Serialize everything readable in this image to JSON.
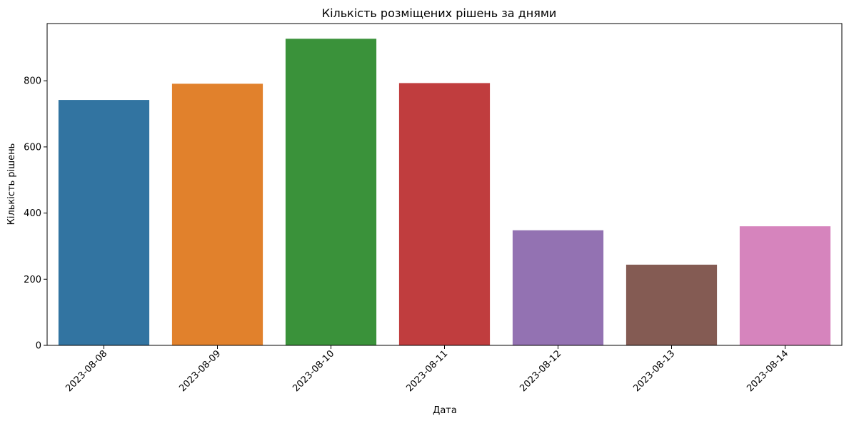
{
  "chart_data": {
    "type": "bar",
    "title": "Кількість розміщених рішень за днями",
    "xlabel": "Дата",
    "ylabel": "Кількість рішень",
    "categories": [
      "2023-08-08",
      "2023-08-09",
      "2023-08-10",
      "2023-08-11",
      "2023-08-12",
      "2023-08-13",
      "2023-08-14"
    ],
    "values": [
      742,
      791,
      927,
      793,
      348,
      244,
      360
    ],
    "colors": [
      "#3274a1",
      "#e1812c",
      "#3a923a",
      "#c03d3e",
      "#9372b2",
      "#845b53",
      "#d684bd"
    ],
    "yticks": [
      0,
      200,
      400,
      600,
      800
    ],
    "ylim": [
      0,
      973
    ],
    "grid": false,
    "legend": false
  }
}
